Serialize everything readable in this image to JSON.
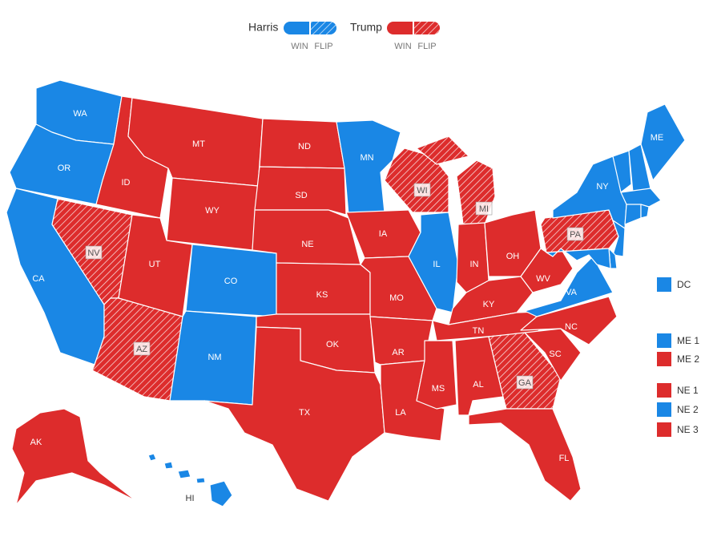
{
  "legend": [
    {
      "name": "Harris",
      "color": "#1a87e5",
      "items": [
        "WIN",
        "FLIP"
      ]
    },
    {
      "name": "Trump",
      "color": "#dd2c2c",
      "items": [
        "WIN",
        "FLIP"
      ]
    }
  ],
  "states": [
    {
      "label": "WA",
      "winner": "Harris",
      "flip": false
    },
    {
      "label": "OR",
      "winner": "Harris",
      "flip": false
    },
    {
      "label": "CA",
      "winner": "Harris",
      "flip": false
    },
    {
      "label": "NV",
      "winner": "Trump",
      "flip": true
    },
    {
      "label": "ID",
      "winner": "Trump",
      "flip": false
    },
    {
      "label": "MT",
      "winner": "Trump",
      "flip": false
    },
    {
      "label": "WY",
      "winner": "Trump",
      "flip": false
    },
    {
      "label": "UT",
      "winner": "Trump",
      "flip": false
    },
    {
      "label": "AZ",
      "winner": "Trump",
      "flip": true
    },
    {
      "label": "CO",
      "winner": "Harris",
      "flip": false
    },
    {
      "label": "NM",
      "winner": "Harris",
      "flip": false
    },
    {
      "label": "ND",
      "winner": "Trump",
      "flip": false
    },
    {
      "label": "SD",
      "winner": "Trump",
      "flip": false
    },
    {
      "label": "NE",
      "winner": "Trump",
      "flip": false
    },
    {
      "label": "KS",
      "winner": "Trump",
      "flip": false
    },
    {
      "label": "OK",
      "winner": "Trump",
      "flip": false
    },
    {
      "label": "TX",
      "winner": "Trump",
      "flip": false
    },
    {
      "label": "MN",
      "winner": "Harris",
      "flip": false
    },
    {
      "label": "IA",
      "winner": "Trump",
      "flip": false
    },
    {
      "label": "MO",
      "winner": "Trump",
      "flip": false
    },
    {
      "label": "AR",
      "winner": "Trump",
      "flip": false
    },
    {
      "label": "LA",
      "winner": "Trump",
      "flip": false
    },
    {
      "label": "WI",
      "winner": "Trump",
      "flip": true
    },
    {
      "label": "IL",
      "winner": "Harris",
      "flip": false
    },
    {
      "label": "MI",
      "winner": "Trump",
      "flip": true
    },
    {
      "label": "IN",
      "winner": "Trump",
      "flip": false
    },
    {
      "label": "OH",
      "winner": "Trump",
      "flip": false
    },
    {
      "label": "KY",
      "winner": "Trump",
      "flip": false
    },
    {
      "label": "TN",
      "winner": "Trump",
      "flip": false
    },
    {
      "label": "MS",
      "winner": "Trump",
      "flip": false
    },
    {
      "label": "AL",
      "winner": "Trump",
      "flip": false
    },
    {
      "label": "GA",
      "winner": "Trump",
      "flip": true
    },
    {
      "label": "FL",
      "winner": "Trump",
      "flip": false
    },
    {
      "label": "SC",
      "winner": "Trump",
      "flip": false
    },
    {
      "label": "NC",
      "winner": "Trump",
      "flip": false
    },
    {
      "label": "VA",
      "winner": "Harris",
      "flip": false
    },
    {
      "label": "WV",
      "winner": "Trump",
      "flip": false
    },
    {
      "label": "PA",
      "winner": "Trump",
      "flip": true
    },
    {
      "label": "NY",
      "winner": "Harris",
      "flip": false
    },
    {
      "label": null,
      "winner": "Harris",
      "flip": false
    },
    {
      "label": null,
      "winner": "Harris",
      "flip": false
    },
    {
      "label": "ME",
      "winner": "Harris",
      "flip": false
    },
    {
      "label": null,
      "winner": "Harris",
      "flip": false
    },
    {
      "label": null,
      "winner": "Harris",
      "flip": false
    },
    {
      "label": null,
      "winner": "Harris",
      "flip": false
    },
    {
      "label": null,
      "winner": "Harris",
      "flip": false
    },
    {
      "label": null,
      "winner": "Harris",
      "flip": false
    },
    {
      "label": null,
      "winner": "Harris",
      "flip": false
    },
    {
      "label": "AK",
      "winner": "Trump",
      "flip": false
    },
    {
      "label": "HI",
      "winner": "Harris",
      "flip": false
    }
  ],
  "districts": [
    {
      "label": "DC",
      "winner": "Harris"
    },
    {
      "label": "ME 1",
      "winner": "Harris"
    },
    {
      "label": "ME 2",
      "winner": "Trump"
    },
    {
      "label": "NE 1",
      "winner": "Trump"
    },
    {
      "label": "NE 2",
      "winner": "Harris"
    },
    {
      "label": "NE 3",
      "winner": "Trump"
    }
  ]
}
